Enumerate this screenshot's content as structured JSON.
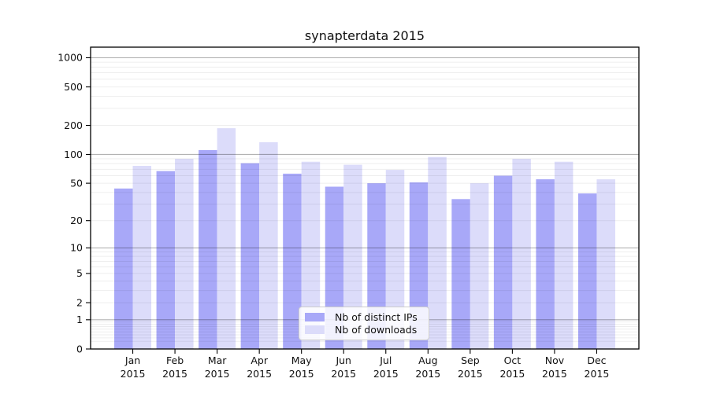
{
  "title": "synapterdata 2015",
  "legend": {
    "items": [
      {
        "label": "Nb of distinct IPs"
      },
      {
        "label": "Nb of downloads"
      }
    ]
  },
  "colors": {
    "ips_bar": "#a8a8f8",
    "downloads_bar": "#dcdcfa",
    "grid_major": "#b3b3b3",
    "grid_minor": "#ededed",
    "frame": "#000000",
    "text": "#111111",
    "legend_border": "#cccccc"
  },
  "chart_data": {
    "type": "bar",
    "title": "synapterdata 2015",
    "categories": [
      "Jan",
      "Feb",
      "Mar",
      "Apr",
      "May",
      "Jun",
      "Jul",
      "Aug",
      "Sep",
      "Oct",
      "Nov",
      "Dec"
    ],
    "category_year": "2015",
    "series": [
      {
        "name": "Nb of distinct IPs",
        "color": "#a8a8f8",
        "values": [
          44,
          67,
          111,
          81,
          63,
          46,
          50,
          51,
          34,
          60,
          55,
          39
        ]
      },
      {
        "name": "Nb of downloads",
        "color": "#dcdcfa",
        "values": [
          76,
          90,
          187,
          134,
          84,
          78,
          69,
          94,
          50,
          90,
          84,
          55
        ]
      }
    ],
    "xlabel": "",
    "ylabel": "",
    "yscale": "log1p",
    "yticks": [
      0,
      1,
      2,
      5,
      10,
      20,
      50,
      100,
      200,
      500,
      1000
    ],
    "ylim": [
      0,
      1285
    ],
    "grid": true,
    "legend_position": "lower center"
  }
}
